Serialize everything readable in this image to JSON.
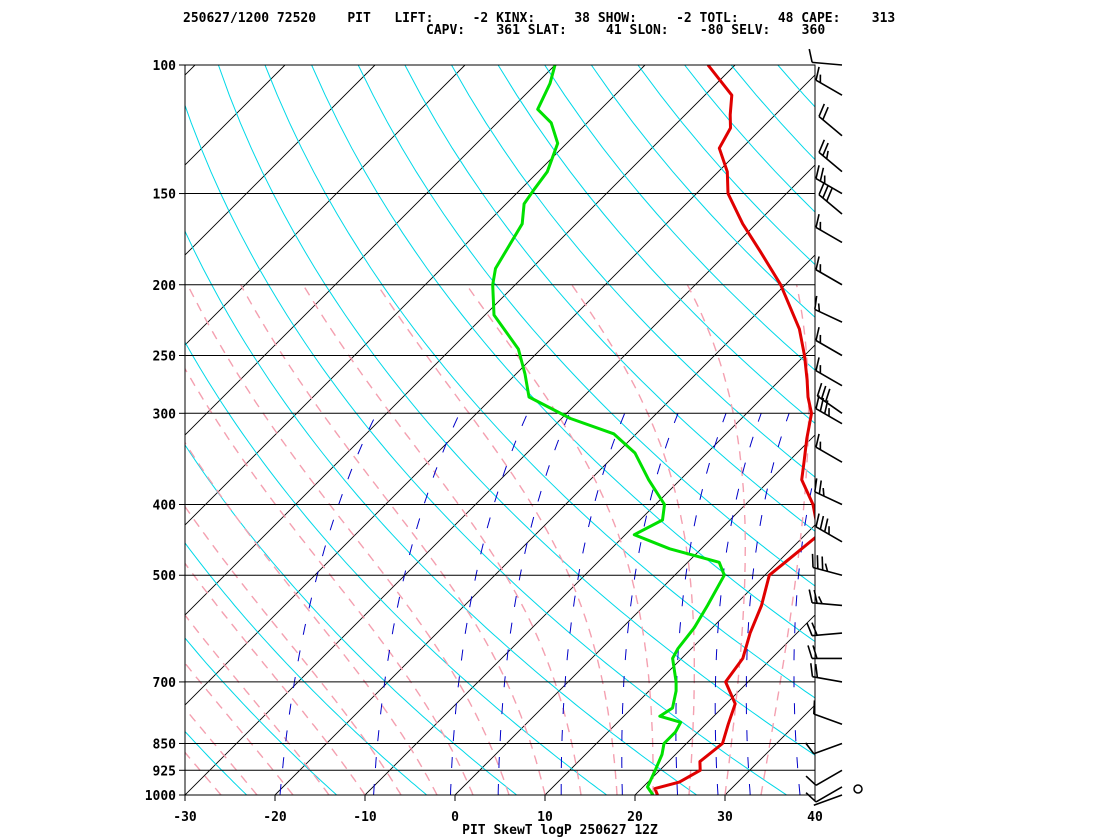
{
  "header": {
    "line1": "250627/1200 72520    PIT   LIFT:     -2 KINX:     38 SHOW:     -2 TOTL:     48 CAPE:    313",
    "line2": "CAPV:    361 SLAT:     41 SLON:    -80 SELV:    360"
  },
  "chart_data": {
    "type": "line",
    "title": "",
    "xlabel": "PIT SkewT logP 250627 12Z",
    "ylabel": "",
    "x_axis": {
      "ticks": [
        -30,
        -20,
        -10,
        0,
        10,
        20,
        30,
        40
      ],
      "range": [
        -30,
        40
      ]
    },
    "y_axis": {
      "scale": "log",
      "ticks": [
        100,
        150,
        200,
        250,
        300,
        400,
        500,
        700,
        850,
        925,
        1000
      ],
      "range": [
        100,
        1000
      ]
    },
    "grid": true,
    "series": [
      {
        "color": "#e00000",
        "points": [
          [
            1000,
            22.5
          ],
          [
            980,
            21.5
          ],
          [
            960,
            23.5
          ],
          [
            925,
            24.5
          ],
          [
            900,
            23.5
          ],
          [
            850,
            24.0
          ],
          [
            800,
            22.5
          ],
          [
            750,
            21.0
          ],
          [
            700,
            17.5
          ],
          [
            650,
            16.8
          ],
          [
            600,
            14.8
          ],
          [
            550,
            13.0
          ],
          [
            500,
            10.5
          ],
          [
            470,
            11.0
          ],
          [
            440,
            11.5
          ],
          [
            400,
            7.5
          ],
          [
            370,
            3.5
          ],
          [
            350,
            1.8
          ],
          [
            325,
            -0.5
          ],
          [
            300,
            -2.8
          ],
          [
            285,
            -5.0
          ],
          [
            270,
            -7.0
          ],
          [
            250,
            -10.0
          ],
          [
            230,
            -13.5
          ],
          [
            200,
            -20.5
          ],
          [
            180,
            -26.5
          ],
          [
            165,
            -31.5
          ],
          [
            150,
            -36.5
          ],
          [
            140,
            -39.0
          ],
          [
            130,
            -42.5
          ],
          [
            122,
            -43.5
          ],
          [
            117,
            -45.0
          ],
          [
            110,
            -47.0
          ],
          [
            100,
            -53.0
          ]
        ]
      },
      {
        "color": "#00e000",
        "points": [
          [
            1000,
            22.0
          ],
          [
            975,
            20.5
          ],
          [
            950,
            20.0
          ],
          [
            925,
            19.5
          ],
          [
            880,
            18.5
          ],
          [
            850,
            17.5
          ],
          [
            820,
            17.5
          ],
          [
            795,
            17.0
          ],
          [
            780,
            14.0
          ],
          [
            760,
            14.5
          ],
          [
            720,
            13.0
          ],
          [
            700,
            12.0
          ],
          [
            650,
            9.0
          ],
          [
            630,
            8.5
          ],
          [
            590,
            8.0
          ],
          [
            550,
            7.0
          ],
          [
            500,
            5.5
          ],
          [
            480,
            3.5
          ],
          [
            460,
            -3.5
          ],
          [
            440,
            -9.0
          ],
          [
            420,
            -7.5
          ],
          [
            400,
            -9.0
          ],
          [
            370,
            -13.5
          ],
          [
            340,
            -18.0
          ],
          [
            320,
            -22.5
          ],
          [
            305,
            -29.0
          ],
          [
            285,
            -36.0
          ],
          [
            265,
            -39.0
          ],
          [
            245,
            -42.5
          ],
          [
            220,
            -49.0
          ],
          [
            200,
            -52.5
          ],
          [
            190,
            -54.0
          ],
          [
            165,
            -56.0
          ],
          [
            155,
            -58.0
          ],
          [
            148,
            -58.5
          ],
          [
            140,
            -59.0
          ],
          [
            128,
            -61.0
          ],
          [
            120,
            -64.0
          ],
          [
            115,
            -67.0
          ],
          [
            106,
            -68.5
          ],
          [
            100,
            -70.0
          ]
        ]
      }
    ],
    "wind_barbs": [
      {
        "p": 1000,
        "dir": 250,
        "spd": 0
      },
      {
        "p": 975,
        "dir": 240,
        "spd": 10
      },
      {
        "p": 925,
        "dir": 240,
        "spd": 10
      },
      {
        "p": 850,
        "dir": 250,
        "spd": 10
      },
      {
        "p": 800,
        "dir": 290,
        "spd": 10
      },
      {
        "p": 700,
        "dir": 280,
        "spd": 20
      },
      {
        "p": 650,
        "dir": 270,
        "spd": 20
      },
      {
        "p": 600,
        "dir": 265,
        "spd": 20
      },
      {
        "p": 550,
        "dir": 275,
        "spd": 25
      },
      {
        "p": 500,
        "dir": 285,
        "spd": 35
      },
      {
        "p": 450,
        "dir": 300,
        "spd": 35
      },
      {
        "p": 400,
        "dir": 295,
        "spd": 25
      },
      {
        "p": 350,
        "dir": 300,
        "spd": 15
      },
      {
        "p": 310,
        "dir": 300,
        "spd": 35
      },
      {
        "p": 300,
        "dir": 305,
        "spd": 30
      },
      {
        "p": 275,
        "dir": 300,
        "spd": 15
      },
      {
        "p": 250,
        "dir": 300,
        "spd": 15
      },
      {
        "p": 225,
        "dir": 295,
        "spd": 15
      },
      {
        "p": 200,
        "dir": 300,
        "spd": 15
      },
      {
        "p": 175,
        "dir": 300,
        "spd": 15
      },
      {
        "p": 160,
        "dir": 310,
        "spd": 30
      },
      {
        "p": 150,
        "dir": 300,
        "spd": 25
      },
      {
        "p": 140,
        "dir": 310,
        "spd": 25
      },
      {
        "p": 125,
        "dir": 310,
        "spd": 20
      },
      {
        "p": 110,
        "dir": 300,
        "spd": 15
      },
      {
        "p": 100,
        "dir": 275,
        "spd": 10
      }
    ]
  }
}
